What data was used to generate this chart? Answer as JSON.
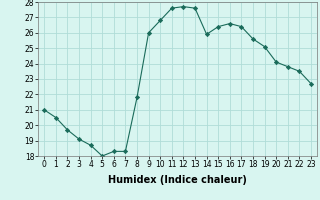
{
  "x": [
    0,
    1,
    2,
    3,
    4,
    5,
    6,
    7,
    8,
    9,
    10,
    11,
    12,
    13,
    14,
    15,
    16,
    17,
    18,
    19,
    20,
    21,
    22,
    23
  ],
  "y": [
    21.0,
    20.5,
    19.7,
    19.1,
    18.7,
    18.0,
    18.3,
    18.3,
    21.8,
    26.0,
    26.8,
    27.6,
    27.7,
    27.6,
    25.9,
    26.4,
    26.6,
    26.4,
    25.6,
    25.1,
    24.1,
    23.8,
    23.5,
    22.7
  ],
  "line_color": "#1a6b5a",
  "marker": "D",
  "marker_size": 2.2,
  "bg_color": "#d8f5f0",
  "grid_color": "#b0ddd8",
  "xlabel": "Humidex (Indice chaleur)",
  "xlim": [
    -0.5,
    23.5
  ],
  "ylim": [
    18,
    28
  ],
  "yticks": [
    18,
    19,
    20,
    21,
    22,
    23,
    24,
    25,
    26,
    27,
    28
  ],
  "xticks": [
    0,
    1,
    2,
    3,
    4,
    5,
    6,
    7,
    8,
    9,
    10,
    11,
    12,
    13,
    14,
    15,
    16,
    17,
    18,
    19,
    20,
    21,
    22,
    23
  ],
  "tick_fontsize": 5.5,
  "label_fontsize": 7.0
}
